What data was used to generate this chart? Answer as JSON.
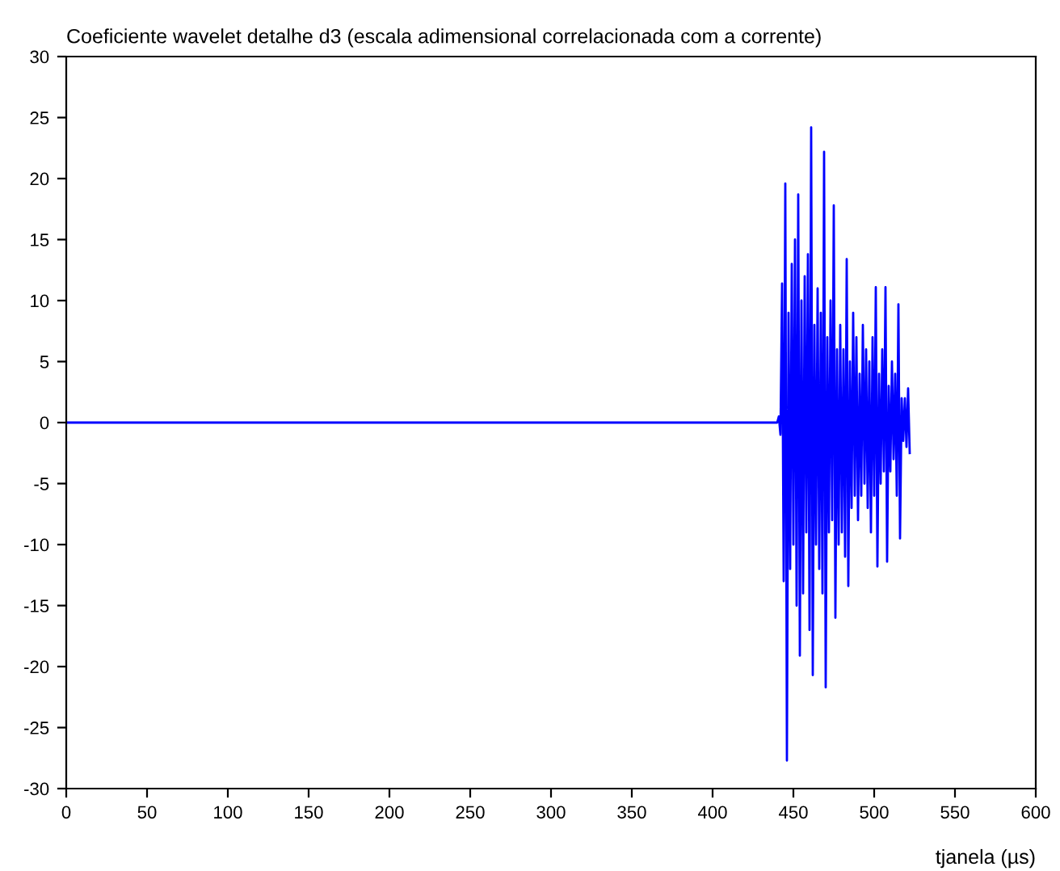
{
  "chart_data": {
    "type": "line",
    "title": "Coeficiente wavelet detalhe d3 (escala adimensional correlacionada com a corrente)",
    "xlabel": "tjanela (µs)",
    "series": [
      {
        "color": "#0000ff",
        "x": [
          0,
          440,
          441,
          442,
          443,
          444,
          445,
          446,
          447,
          448,
          449,
          450,
          451,
          452,
          453,
          454,
          455,
          456,
          457,
          458,
          459,
          460,
          461,
          462,
          463,
          464,
          465,
          466,
          467,
          468,
          469,
          470,
          471,
          472,
          473,
          474,
          475,
          476,
          477,
          478,
          479,
          480,
          481,
          482,
          483,
          484,
          485,
          486,
          487,
          488,
          489,
          490,
          491,
          492,
          493,
          494,
          495,
          496,
          497,
          498,
          499,
          500,
          501,
          502,
          503,
          504,
          505,
          506,
          507,
          508,
          509,
          510,
          511,
          512,
          513,
          514,
          515,
          516,
          517,
          518,
          519,
          520,
          521,
          522
        ],
        "values": [
          0,
          0,
          0.5,
          -1,
          11.4,
          -13,
          19.6,
          -27.7,
          9,
          -12,
          13,
          -10,
          15,
          -15,
          18.7,
          -19.1,
          10,
          -14,
          12,
          -9,
          13.8,
          -17,
          24.2,
          -20.7,
          8,
          -10,
          11,
          -12,
          9,
          -14,
          22.2,
          -21.7,
          7,
          -9,
          10,
          -8,
          17.8,
          -16,
          6,
          -10,
          8,
          -9,
          6,
          -11,
          13.4,
          -13.4,
          5,
          -7,
          9,
          -6,
          7,
          -8,
          4,
          -6,
          8,
          -5,
          6,
          -7,
          5,
          -9,
          7,
          -6,
          11.1,
          -11.8,
          4,
          -5,
          6,
          -4,
          11.1,
          -11.4,
          3,
          -4,
          5,
          -3,
          4,
          -6,
          9.7,
          -9.5,
          2,
          -1.5,
          2,
          -2,
          2.8,
          -2.5
        ]
      }
    ],
    "xlim": [
      0,
      600
    ],
    "xticks": [
      0,
      50,
      100,
      150,
      200,
      250,
      300,
      350,
      400,
      450,
      500,
      550,
      600
    ],
    "ylim": [
      -30,
      30
    ],
    "yticks": [
      -30,
      -25,
      -20,
      -15,
      -10,
      -5,
      0,
      5,
      10,
      15,
      20,
      25,
      30
    ],
    "grid": false,
    "legend": false
  }
}
